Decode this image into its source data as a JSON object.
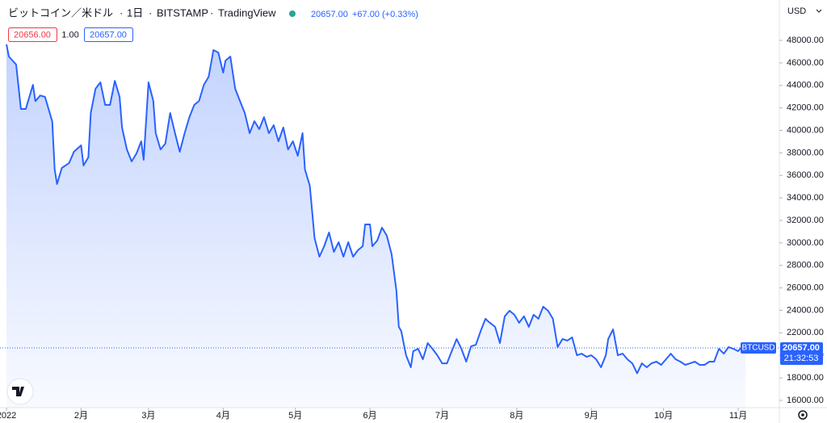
{
  "chart_data": {
    "type": "line",
    "symbol": "ビットコイン／米ドル",
    "interval": "1日",
    "exchange": "BITSTAMP",
    "source": "TradingView",
    "change": "+67.00 (+0.33%)",
    "bid": "20656.00",
    "spread": "1.00",
    "ask": "20657.00",
    "currency": "USD",
    "countdown": "21:32:53",
    "last_price": {
      "value": 20657,
      "label": "20657.00"
    },
    "x": [
      0,
      1,
      4,
      6,
      8,
      11,
      12,
      14,
      16,
      19,
      20,
      21,
      23,
      26,
      28,
      31,
      32,
      34,
      35,
      37,
      39,
      41,
      43,
      45,
      47,
      48,
      50,
      52,
      54,
      56,
      57,
      59,
      61,
      62,
      64,
      66,
      68,
      70,
      72,
      74,
      76,
      78,
      80,
      82,
      84,
      86,
      88,
      90,
      91,
      93,
      95,
      97,
      99,
      101,
      103,
      105,
      107,
      109,
      111,
      113,
      115,
      117,
      119,
      121,
      123,
      124,
      126,
      128,
      130,
      132,
      134,
      136,
      138,
      140,
      142,
      144,
      146,
      148,
      149,
      151,
      152,
      154,
      156,
      158,
      160,
      162,
      163,
      164,
      166,
      168,
      169,
      171,
      173,
      175,
      177,
      179,
      181,
      183,
      185,
      187,
      189,
      191,
      193,
      195,
      197,
      199,
      200,
      203,
      205,
      207,
      209,
      211,
      213,
      215,
      217,
      219,
      221,
      223,
      225,
      227,
      229,
      231,
      233,
      235,
      237,
      239,
      241,
      243,
      245,
      247,
      249,
      250,
      252,
      254,
      256,
      258,
      260,
      262,
      264,
      266,
      268,
      270,
      272,
      274,
      276,
      278,
      280,
      282,
      284,
      286,
      288,
      290,
      292,
      294,
      296,
      298,
      300,
      302,
      304,
      306,
      307
    ],
    "series": [
      {
        "name": "BTCUSD",
        "color": "#2962ff",
        "values": [
          47640,
          46570,
          45850,
          41900,
          41900,
          44050,
          42600,
          43100,
          42980,
          40800,
          36520,
          35230,
          36660,
          37090,
          38100,
          38670,
          36880,
          37600,
          41540,
          43700,
          44270,
          42260,
          42260,
          44410,
          42980,
          40250,
          38310,
          37240,
          37950,
          39030,
          37380,
          44270,
          42620,
          39750,
          38310,
          38820,
          41540,
          39750,
          38100,
          39750,
          41180,
          42260,
          42620,
          44050,
          44770,
          47140,
          46920,
          45130,
          46200,
          46570,
          43700,
          42620,
          41540,
          39750,
          40820,
          40110,
          41180,
          39750,
          40460,
          39030,
          40250,
          38310,
          39030,
          37740,
          39750,
          36520,
          35080,
          30420,
          28770,
          29700,
          30920,
          29200,
          30060,
          28770,
          30060,
          28770,
          29350,
          29700,
          31640,
          31640,
          29700,
          30200,
          31350,
          30640,
          28990,
          25760,
          22530,
          22170,
          20010,
          18940,
          20370,
          20580,
          19650,
          21090,
          20580,
          20010,
          19290,
          19290,
          20370,
          21450,
          20580,
          19440,
          20800,
          20940,
          22170,
          23250,
          23040,
          22530,
          21090,
          23470,
          23970,
          23610,
          22890,
          23470,
          22530,
          23610,
          23250,
          24330,
          23970,
          23250,
          20730,
          21450,
          21310,
          21600,
          20010,
          20150,
          19870,
          20010,
          19650,
          18940,
          20010,
          21450,
          22310,
          20010,
          20150,
          19650,
          19290,
          18410,
          19290,
          18940,
          19290,
          19440,
          19150,
          19650,
          20150,
          19650,
          19440,
          19150,
          19290,
          19440,
          19150,
          19150,
          19440,
          19440,
          20580,
          20150,
          20730,
          20580,
          20370,
          20870,
          20657
        ]
      }
    ],
    "xlim": [
      -2.7,
      321.1
    ],
    "ylim": [
      15350,
      51590
    ],
    "xticks": [
      {
        "value": 0,
        "label": "2022"
      },
      {
        "value": 31,
        "label": "2月"
      },
      {
        "value": 59,
        "label": "3月"
      },
      {
        "value": 90,
        "label": "4月"
      },
      {
        "value": 120,
        "label": "5月"
      },
      {
        "value": 151,
        "label": "6月"
      },
      {
        "value": 181,
        "label": "7月"
      },
      {
        "value": 212,
        "label": "8月"
      },
      {
        "value": 243,
        "label": "9月"
      },
      {
        "value": 273,
        "label": "10月"
      },
      {
        "value": 304,
        "label": "11月"
      }
    ],
    "yticks": [
      {
        "value": 16000,
        "label": "16000.00"
      },
      {
        "value": 18000,
        "label": "18000.00"
      },
      {
        "value": 20000,
        "label": "20000.00"
      },
      {
        "value": 22000,
        "label": "22000.00"
      },
      {
        "value": 24000,
        "label": "24000.00"
      },
      {
        "value": 26000,
        "label": "26000.00"
      },
      {
        "value": 28000,
        "label": "28000.00"
      },
      {
        "value": 30000,
        "label": "30000.00"
      },
      {
        "value": 32000,
        "label": "32000.00"
      },
      {
        "value": 34000,
        "label": "34000.00"
      },
      {
        "value": 36000,
        "label": "36000.00"
      },
      {
        "value": 38000,
        "label": "38000.00"
      },
      {
        "value": 40000,
        "label": "40000.00"
      },
      {
        "value": 42000,
        "label": "42000.00"
      },
      {
        "value": 44000,
        "label": "44000.00"
      },
      {
        "value": 46000,
        "label": "46000.00"
      },
      {
        "value": 48000,
        "label": "48000.00"
      }
    ]
  }
}
